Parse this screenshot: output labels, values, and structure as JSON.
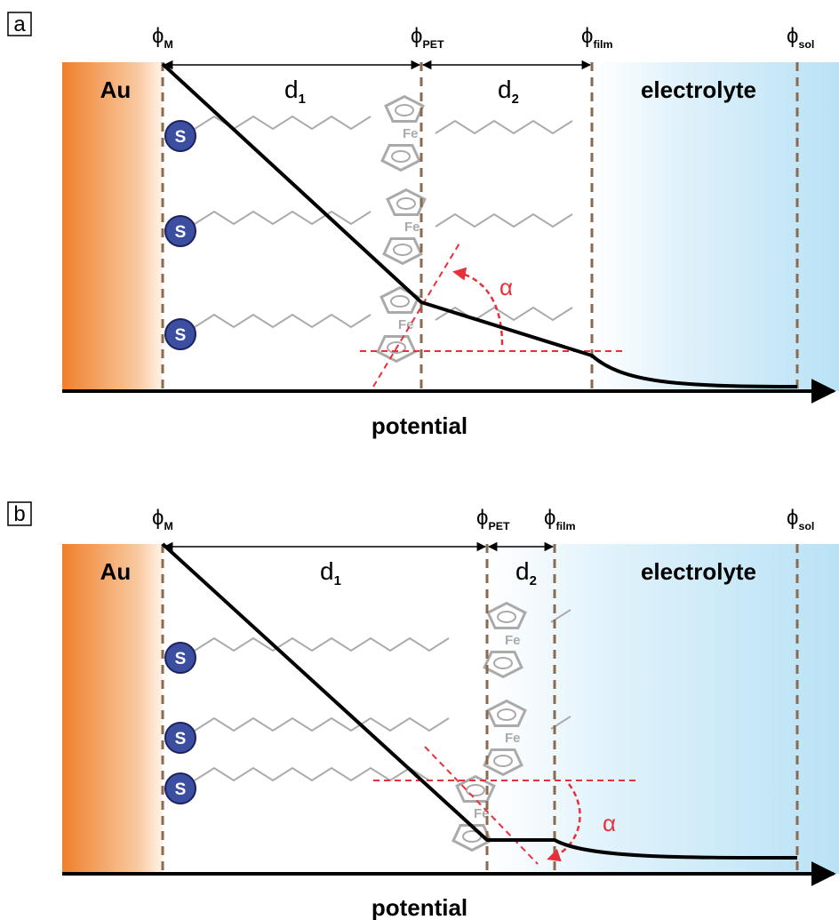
{
  "panels": [
    {
      "label": "a",
      "phi": [
        {
          "symbol": "ϕ",
          "sub": "M"
        },
        {
          "symbol": "ϕ",
          "sub": "PET"
        },
        {
          "symbol": "ϕ",
          "sub": "film"
        },
        {
          "symbol": "ϕ",
          "sub": "sol"
        }
      ],
      "metal": "Au",
      "electrolyte": "electrolyte",
      "distances": [
        {
          "symbol": "d",
          "sub": "1"
        },
        {
          "symbol": "d",
          "sub": "2"
        }
      ],
      "sulfur": [
        "S",
        "S",
        "S"
      ],
      "iron": [
        "Fe",
        "Fe",
        "Fe"
      ],
      "angle": "α",
      "axis": "potential"
    },
    {
      "label": "b",
      "phi": [
        {
          "symbol": "ϕ",
          "sub": "M"
        },
        {
          "symbol": "ϕ",
          "sub": "PET"
        },
        {
          "symbol": "ϕ",
          "sub": "film"
        },
        {
          "symbol": "ϕ",
          "sub": "sol"
        }
      ],
      "metal": "Au",
      "electrolyte": "electrolyte",
      "distances": [
        {
          "symbol": "d",
          "sub": "1"
        },
        {
          "symbol": "d",
          "sub": "2"
        }
      ],
      "sulfur": [
        "S",
        "S",
        "S"
      ],
      "iron": [
        "Fe",
        "Fe",
        "Fe"
      ],
      "angle": "α",
      "axis": "potential"
    }
  ]
}
